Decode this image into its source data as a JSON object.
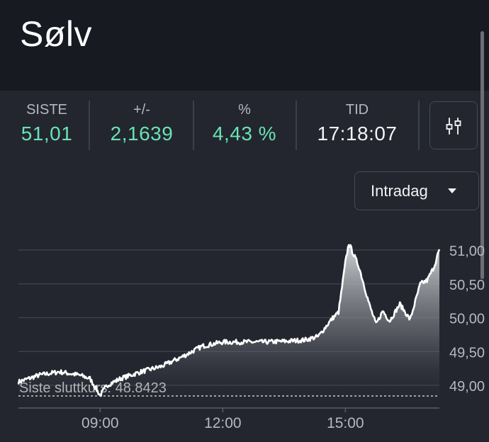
{
  "header": {
    "title": "Sølv"
  },
  "stats": [
    {
      "label": "SISTE",
      "value": "51,01"
    },
    {
      "label": "+/-",
      "value": "2,1639"
    },
    {
      "label": "%",
      "value": "4,43 %"
    },
    {
      "label": "TID",
      "value": "17:18:07"
    }
  ],
  "controls": {
    "period": "Intradag"
  },
  "colors": {
    "positive": "#69e3b2",
    "line": "#ffffff"
  },
  "chart_data": {
    "type": "area",
    "x_ticks": [
      "09:00",
      "12:00",
      "15:00"
    ],
    "y_ticks": [
      "49,00",
      "49,50",
      "50,00",
      "50,50",
      "51,00"
    ],
    "ylim": [
      48.7,
      51.2
    ],
    "reference_label": "Siste sluttkurs: 48.8423",
    "reference_value": 48.8423,
    "series": [
      {
        "x": [
          "07:00",
          "07:30",
          "08:00",
          "08:30",
          "08:45",
          "09:00",
          "09:10",
          "09:30",
          "10:00",
          "10:30",
          "11:00",
          "11:30",
          "12:00",
          "12:30",
          "13:00",
          "13:30",
          "14:00",
          "14:20",
          "14:40",
          "14:50",
          "15:00",
          "15:05",
          "15:20",
          "15:35",
          "15:45",
          "15:55",
          "16:05",
          "16:20",
          "16:35",
          "16:50",
          "17:00",
          "17:10",
          "17:18"
        ],
        "values": [
          49.05,
          49.15,
          49.2,
          49.15,
          49.1,
          48.85,
          49.0,
          49.1,
          49.2,
          49.28,
          49.42,
          49.58,
          49.64,
          49.64,
          49.64,
          49.65,
          49.67,
          49.72,
          49.98,
          50.08,
          50.82,
          51.1,
          50.75,
          50.2,
          49.9,
          50.1,
          49.95,
          50.2,
          49.97,
          50.5,
          50.55,
          50.75,
          51.01
        ]
      }
    ]
  }
}
